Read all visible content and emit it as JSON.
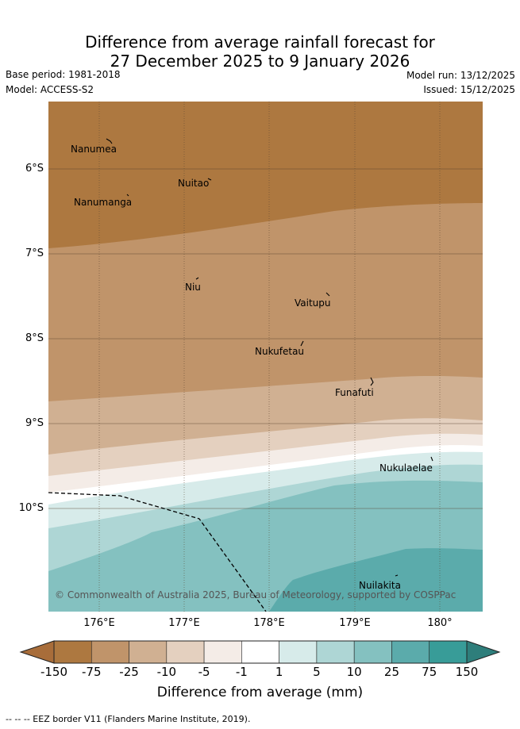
{
  "header": {
    "title_line1": "Difference from average rainfall forecast for",
    "title_line2": "27 December 2025 to 9 January 2026",
    "base_period": "Base period: 1981-2018",
    "model": "Model: ACCESS-S2",
    "model_run": "Model run: 13/12/2025",
    "issued": "Issued: 15/12/2025"
  },
  "map": {
    "latitude_labels": [
      "6°S",
      "7°S",
      "8°S",
      "9°S",
      "10°S"
    ],
    "longitude_labels": [
      "176°E",
      "177°E",
      "178°E",
      "179°E",
      "180°"
    ],
    "places": {
      "nanumea": "Nanumea",
      "nuitao": "Nuitao",
      "nanumanga": "Nanumanga",
      "niu": "Niu",
      "vaitupu": "Vaitupu",
      "nukufetau": "Nukufetau",
      "funafuti": "Funafuti",
      "nukulaelae": "Nukulaelae",
      "nuilakita": "Nuilakita"
    },
    "copyright": "© Commonwealth of Australia 2025, Bureau of Meteorology, supported by COSPPac"
  },
  "legend": {
    "ticks": [
      "-150",
      "-75",
      "-25",
      "-10",
      "-5",
      "-1",
      "1",
      "5",
      "10",
      "25",
      "75",
      "150"
    ],
    "colors": [
      "#a86d3a",
      "#ad7840",
      "#c0946a",
      "#d0b092",
      "#e4d0bf",
      "#f4ece7",
      "#ffffff",
      "#d7ebea",
      "#aed6d5",
      "#84c1c0",
      "#5babab",
      "#389c98",
      "#2e7e7b"
    ],
    "title": "Difference from average (mm)"
  },
  "footnote": "-- -- -- EEZ border V11 (Flanders Marine Institute, 2019)."
}
